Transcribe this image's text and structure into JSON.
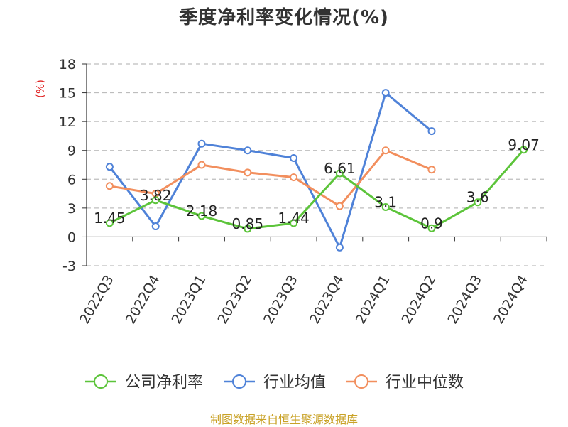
{
  "chart_data": {
    "type": "line",
    "title": "季度净利率变化情况(%)",
    "ylabel": "(%)",
    "xlabel": "",
    "categories": [
      "2022Q3",
      "2022Q4",
      "2023Q1",
      "2023Q2",
      "2023Q3",
      "2023Q4",
      "2024Q1",
      "2024Q2",
      "2024Q3",
      "2024Q4"
    ],
    "ylim": [
      -3,
      18
    ],
    "yticks": [
      18,
      15,
      12,
      9,
      6,
      3,
      0,
      -3
    ],
    "grid": true,
    "legend_position": "bottom",
    "series": [
      {
        "name": "公司净利率",
        "color": "#5cc43a",
        "values": [
          1.45,
          3.82,
          2.18,
          0.85,
          1.44,
          6.61,
          3.1,
          0.9,
          3.6,
          9.07
        ],
        "labels": [
          "1.45",
          "3.82",
          "2.18",
          "0.85",
          "1.44",
          "6.61",
          "3.1",
          "0.9",
          "3.6",
          "9.07"
        ]
      },
      {
        "name": "行业均值",
        "color": "#4f82d8",
        "values": [
          7.3,
          1.1,
          9.7,
          9.0,
          8.2,
          -1.1,
          15.0,
          11.0,
          null,
          null
        ]
      },
      {
        "name": "行业中位数",
        "color": "#f28f5e",
        "values": [
          5.3,
          4.5,
          7.5,
          6.7,
          6.2,
          3.2,
          9.0,
          7.0,
          null,
          null
        ]
      }
    ]
  },
  "source": "制图数据来自恒生聚源数据库"
}
